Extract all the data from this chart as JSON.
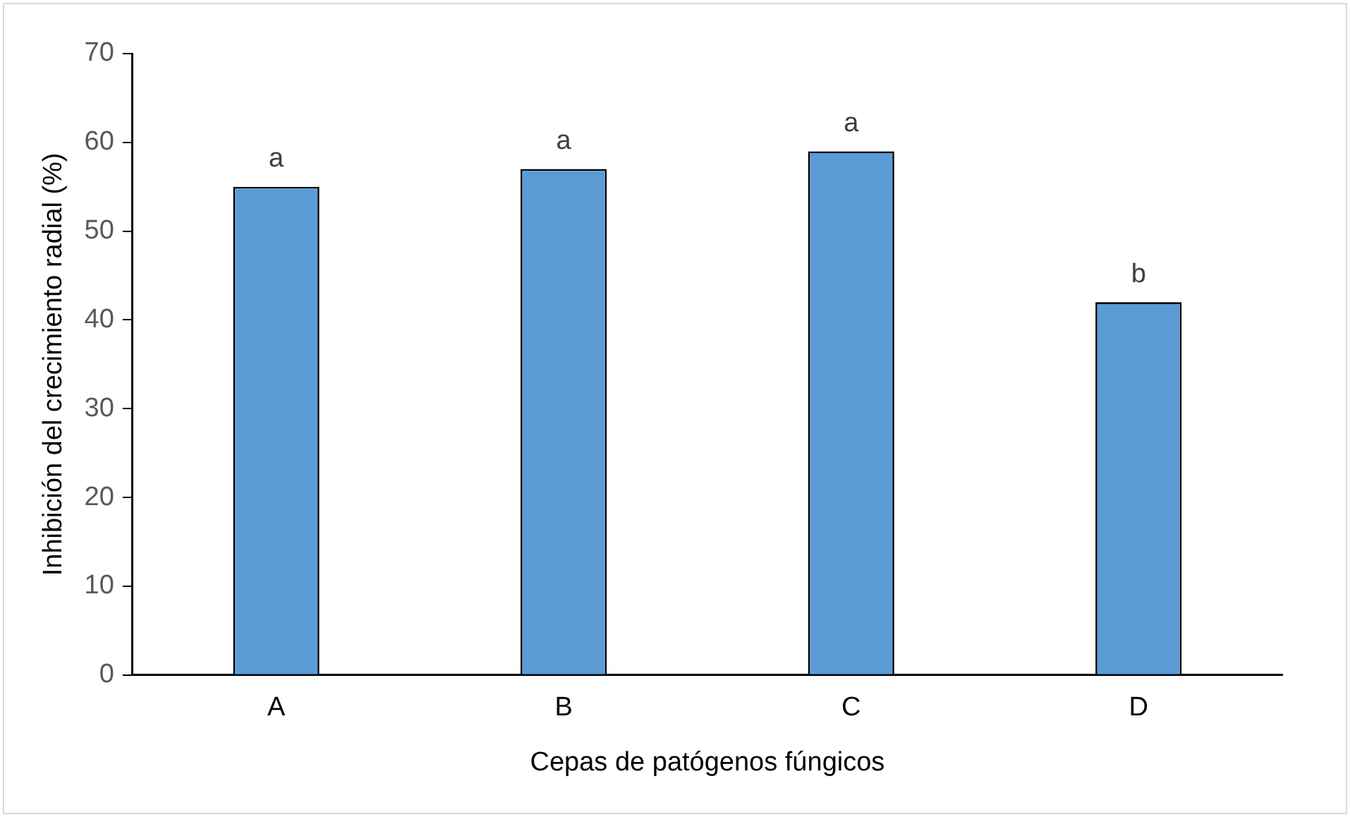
{
  "chart_data": {
    "type": "bar",
    "xlabel": "Cepas de patógenos fúngicos",
    "ylabel": "Inhibición del crecimiento radial (%)",
    "categories": [
      "A",
      "B",
      "C",
      "D"
    ],
    "values": [
      55,
      57,
      59,
      42
    ],
    "color": "#5b9bd5",
    "ylim": [
      0,
      70
    ],
    "yticks": [
      0,
      10,
      20,
      30,
      40,
      50,
      60,
      70
    ],
    "grid": false,
    "legend": false,
    "annotations": [
      {
        "text": "a",
        "x": "A",
        "y": 55
      },
      {
        "text": "a",
        "x": "B",
        "y": 57
      },
      {
        "text": "a",
        "x": "C",
        "y": 59
      },
      {
        "text": "b",
        "x": "D",
        "y": 42
      }
    ]
  }
}
